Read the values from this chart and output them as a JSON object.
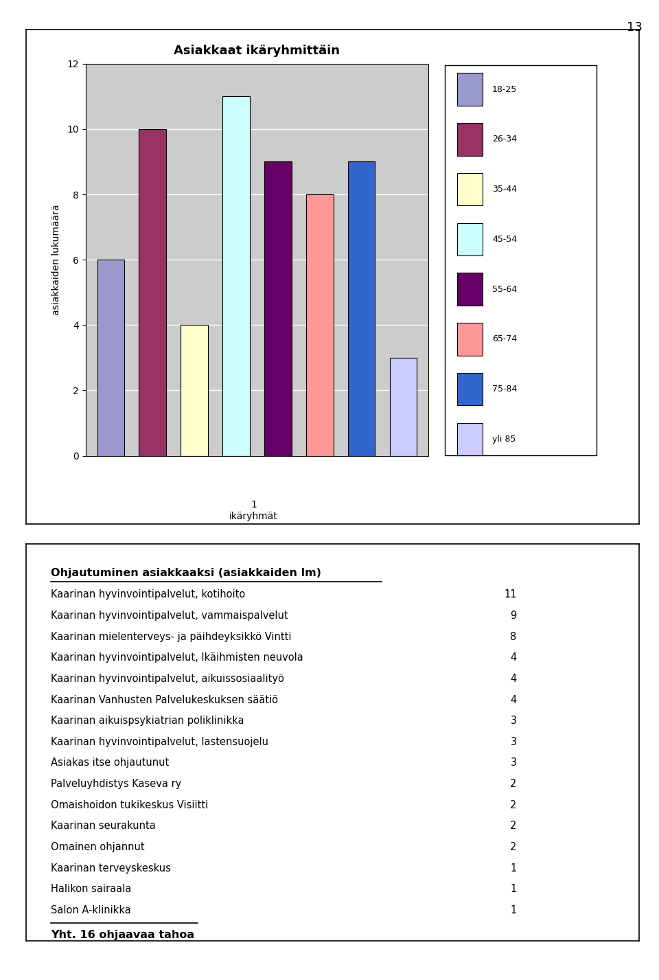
{
  "chart_title": "Asiakkaat ikäryhmittäin",
  "bar_labels": [
    "18-25",
    "26-34",
    "35-44",
    "45-54",
    "55-64",
    "65-74",
    "75-84",
    "yli 85"
  ],
  "bar_values": [
    6,
    10,
    4,
    11,
    9,
    8,
    9,
    3
  ],
  "bar_colors": [
    "#9999CC",
    "#993366",
    "#FFFFCC",
    "#CCFFFF",
    "#660066",
    "#FF9999",
    "#3366CC",
    "#CCCCFF"
  ],
  "ylabel": "asiakkaiden lukumäärä",
  "xlabel": "ikäryhmät",
  "ylim": [
    0,
    12
  ],
  "yticks": [
    0,
    2,
    4,
    6,
    8,
    10,
    12
  ],
  "chart_bg": "#CCCCCC",
  "legend_entries": [
    "18-25",
    "26-34",
    "35-44",
    "45-54",
    "55-64",
    "65-74",
    "75-84",
    "yli 85"
  ],
  "page_number": "13",
  "table_title": "Ohjautuminen asiakkaaksi (asiakkaiden lm)",
  "table_rows": [
    [
      "Kaarinan hyvinvointipalvelut, kotihoito",
      "11"
    ],
    [
      "Kaarinan hyvinvointipalvelut, vammaispalvelut",
      "9"
    ],
    [
      "Kaarinan mielenterveys- ja päihdeyksikkö Vintti",
      "8"
    ],
    [
      "Kaarinan hyvinvointipalvelut, Ikäihmisten neuvola",
      "4"
    ],
    [
      "Kaarinan hyvinvointipalvelut, aikuissosiaalityö",
      "4"
    ],
    [
      "Kaarinan Vanhusten Palvelukeskuksen säätiö",
      "4"
    ],
    [
      "Kaarinan aikuispsykiatrian poliklinikka",
      "3"
    ],
    [
      "Kaarinan hyvinvointipalvelut, lastensuojelu",
      "3"
    ],
    [
      "Asiakas itse ohjautunut",
      "3"
    ],
    [
      "Palveluyhdistys Kaseva ry",
      "2"
    ],
    [
      "Omaishoidon tukikeskus Visiitti",
      "2"
    ],
    [
      "Kaarinan seurakunta",
      "2"
    ],
    [
      "Omainen ohjannut",
      "2"
    ],
    [
      "Kaarinan terveyskeskus",
      "1"
    ],
    [
      "Halikon sairaala",
      "1"
    ],
    [
      "Salon A-klinikka",
      "1"
    ]
  ],
  "table_footer": "Yht. 16 ohjaavaa tahoa"
}
